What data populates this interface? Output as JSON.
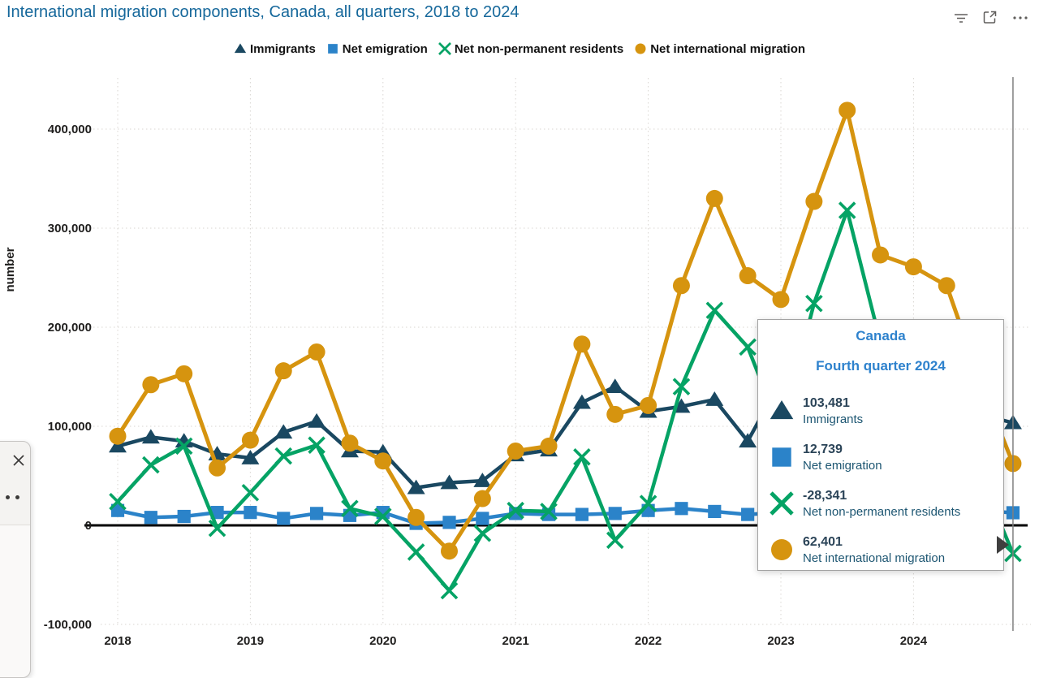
{
  "header": {
    "title": "International migration components, Canada, all quarters, 2018 to 2024"
  },
  "legend": {
    "items": [
      {
        "label": "Immigrants",
        "marker": "triangle",
        "color": "#1A4861"
      },
      {
        "label": "Net emigration",
        "marker": "square",
        "color": "#2B83C9"
      },
      {
        "label": "Net non-permanent residents",
        "marker": "x",
        "color": "#05A365"
      },
      {
        "label": "Net international migration",
        "marker": "circle",
        "color": "#D6940F"
      }
    ]
  },
  "y_axis": {
    "title": "number",
    "ticks": [
      {
        "label": "400,000",
        "value": 400000
      },
      {
        "label": "300,000",
        "value": 300000
      },
      {
        "label": "200,000",
        "value": 200000
      },
      {
        "label": "100,000",
        "value": 100000
      },
      {
        "label": "0",
        "value": 0
      },
      {
        "label": "-100,000",
        "value": -100000
      }
    ]
  },
  "x_axis": {
    "ticks": [
      {
        "label": "2018"
      },
      {
        "label": "2019"
      },
      {
        "label": "2020"
      },
      {
        "label": "2021"
      },
      {
        "label": "2022"
      },
      {
        "label": "2023"
      },
      {
        "label": "2024"
      }
    ]
  },
  "chart_data": {
    "type": "line",
    "title": "International migration components, Canada, all quarters, 2018 to 2024",
    "xlabel": "",
    "ylabel": "number",
    "ylim": [
      -100000,
      450000
    ],
    "grid": true,
    "legend_position": "top",
    "highlight_index": 27,
    "categories": [
      "Q1 2018",
      "Q2 2018",
      "Q3 2018",
      "Q4 2018",
      "Q1 2019",
      "Q2 2019",
      "Q3 2019",
      "Q4 2019",
      "Q1 2020",
      "Q2 2020",
      "Q3 2020",
      "Q4 2020",
      "Q1 2021",
      "Q2 2021",
      "Q3 2021",
      "Q4 2021",
      "Q1 2022",
      "Q2 2022",
      "Q3 2022",
      "Q4 2022",
      "Q1 2023",
      "Q2 2023",
      "Q3 2023",
      "Q4 2023",
      "Q1 2024",
      "Q2 2024",
      "Q3 2024",
      "Q4 2024"
    ],
    "series": [
      {
        "name": "Immigrants",
        "color": "#1A4861",
        "marker": "triangle",
        "values": [
          80000,
          89000,
          85000,
          72000,
          68000,
          94000,
          105000,
          75000,
          74000,
          38000,
          43000,
          45000,
          71000,
          76000,
          124000,
          140000,
          115000,
          120000,
          127000,
          85000,
          146000,
          117000,
          112000,
          100000,
          122000,
          117000,
          112000,
          103481
        ]
      },
      {
        "name": "Net emigration",
        "color": "#2B83C9",
        "marker": "square",
        "values": [
          15000,
          8000,
          9000,
          13000,
          13000,
          7000,
          12000,
          10000,
          13000,
          2000,
          3000,
          7000,
          12000,
          11000,
          11000,
          12000,
          15000,
          17000,
          14000,
          11000,
          13000,
          14000,
          11000,
          12000,
          13000,
          17000,
          15000,
          12739
        ]
      },
      {
        "name": "Net non-permanent residents",
        "color": "#05A365",
        "marker": "x",
        "values": [
          24000,
          61000,
          80000,
          -3000,
          33000,
          70000,
          81000,
          17000,
          9000,
          -27000,
          -66000,
          -8000,
          15000,
          14000,
          69000,
          -15000,
          22000,
          140000,
          217000,
          180000,
          95000,
          224000,
          318000,
          185000,
          152000,
          142000,
          51000,
          -28341
        ]
      },
      {
        "name": "Net international migration",
        "color": "#D6940F",
        "marker": "circle",
        "values": [
          90000,
          142000,
          153000,
          58000,
          86000,
          156000,
          175000,
          83000,
          65000,
          8000,
          -26000,
          27000,
          75000,
          80000,
          183000,
          112000,
          121000,
          242000,
          330000,
          252000,
          228000,
          327000,
          419000,
          273000,
          261000,
          242000,
          146000,
          62401
        ]
      }
    ]
  },
  "tooltip": {
    "region": "Canada",
    "period": "Fourth quarter 2024",
    "rows": [
      {
        "value": "103,481",
        "label": "Immigrants",
        "marker": "triangle",
        "color": "#1A4861"
      },
      {
        "value": "12,739",
        "label": "Net emigration",
        "marker": "square",
        "color": "#2B83C9"
      },
      {
        "value": "-28,341",
        "label": "Net non-permanent residents",
        "marker": "x",
        "color": "#05A365"
      },
      {
        "value": "62,401",
        "label": "Net international migration",
        "marker": "circle",
        "color": "#D6940F"
      }
    ]
  },
  "colors": {
    "title": "#16689B",
    "tooltip_header": "#2E82CD",
    "axis_text": "#1F1E1D",
    "gridline": "#D9D6D2",
    "zero_line": "#000000",
    "crosshair": "#7F7F7F"
  }
}
